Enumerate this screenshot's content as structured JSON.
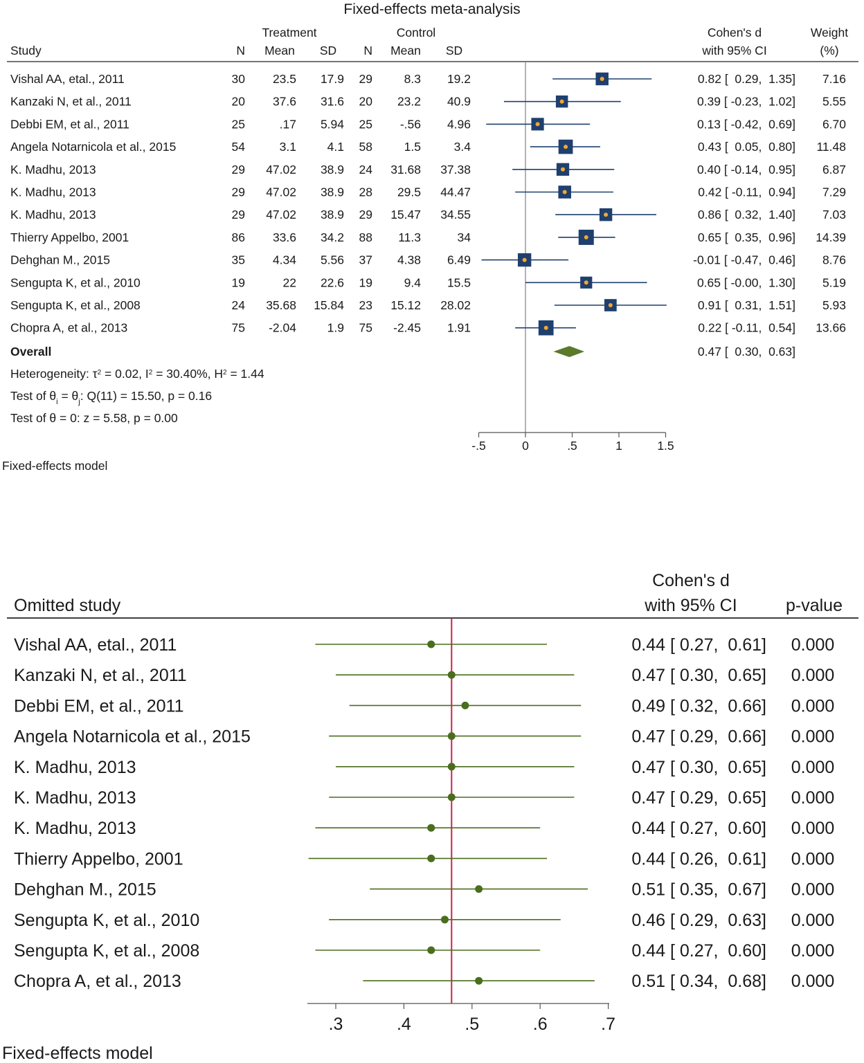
{
  "chart_data": [
    {
      "type": "forest",
      "title": "Fixed-effects meta-analysis",
      "group_headers": {
        "treatment": "Treatment",
        "control": "Control"
      },
      "columns": {
        "study": "Study",
        "n": "N",
        "mean": "Mean",
        "sd": "SD",
        "effect_line1": "Cohen's d",
        "effect_line2": "with 95% CI",
        "weight_line1": "Weight",
        "weight_line2": "(%)"
      },
      "studies": [
        {
          "name": "Vishal AA, etal., 2011",
          "t_n": "30",
          "t_mean": "23.5",
          "t_sd": "17.9",
          "c_n": "29",
          "c_mean": "8.3",
          "c_sd": "19.2",
          "d": 0.82,
          "lo": 0.29,
          "hi": 1.35,
          "ci_text": "0.82 [  0.29,  1.35]",
          "weight": 7.16,
          "weight_text": "7.16"
        },
        {
          "name": "Kanzaki N, et al., 2011",
          "t_n": "20",
          "t_mean": "37.6",
          "t_sd": "31.6",
          "c_n": "20",
          "c_mean": "23.2",
          "c_sd": "40.9",
          "d": 0.39,
          "lo": -0.23,
          "hi": 1.02,
          "ci_text": "0.39 [ -0.23,  1.02]",
          "weight": 5.55,
          "weight_text": "5.55"
        },
        {
          "name": "Debbi EM, et al., 2011",
          "t_n": "25",
          "t_mean": ".17",
          "t_sd": "5.94",
          "c_n": "25",
          "c_mean": "-.56",
          "c_sd": "4.96",
          "d": 0.13,
          "lo": -0.42,
          "hi": 0.69,
          "ci_text": "0.13 [ -0.42,  0.69]",
          "weight": 6.7,
          "weight_text": "6.70"
        },
        {
          "name": "Angela Notarnicola et al., 2015",
          "t_n": "54",
          "t_mean": "3.1",
          "t_sd": "4.1",
          "c_n": "58",
          "c_mean": "1.5",
          "c_sd": "3.4",
          "d": 0.43,
          "lo": 0.05,
          "hi": 0.8,
          "ci_text": "0.43 [  0.05,  0.80]",
          "weight": 11.48,
          "weight_text": "11.48"
        },
        {
          "name": "K. Madhu, 2013",
          "t_n": "29",
          "t_mean": "47.02",
          "t_sd": "38.9",
          "c_n": "24",
          "c_mean": "31.68",
          "c_sd": "37.38",
          "d": 0.4,
          "lo": -0.14,
          "hi": 0.95,
          "ci_text": "0.40 [ -0.14,  0.95]",
          "weight": 6.87,
          "weight_text": "6.87"
        },
        {
          "name": "K. Madhu, 2013",
          "t_n": "29",
          "t_mean": "47.02",
          "t_sd": "38.9",
          "c_n": "28",
          "c_mean": "29.5",
          "c_sd": "44.47",
          "d": 0.42,
          "lo": -0.11,
          "hi": 0.94,
          "ci_text": "0.42 [ -0.11,  0.94]",
          "weight": 7.29,
          "weight_text": "7.29"
        },
        {
          "name": "K. Madhu, 2013",
          "t_n": "29",
          "t_mean": "47.02",
          "t_sd": "38.9",
          "c_n": "29",
          "c_mean": "15.47",
          "c_sd": "34.55",
          "d": 0.86,
          "lo": 0.32,
          "hi": 1.4,
          "ci_text": "0.86 [  0.32,  1.40]",
          "weight": 7.03,
          "weight_text": "7.03"
        },
        {
          "name": "Thierry Appelbo, 2001",
          "t_n": "86",
          "t_mean": "33.6",
          "t_sd": "34.2",
          "c_n": "88",
          "c_mean": "11.3",
          "c_sd": "34",
          "d": 0.65,
          "lo": 0.35,
          "hi": 0.96,
          "ci_text": "0.65 [  0.35,  0.96]",
          "weight": 14.39,
          "weight_text": "14.39"
        },
        {
          "name": "Dehghan M., 2015",
          "t_n": "35",
          "t_mean": "4.34",
          "t_sd": "5.56",
          "c_n": "37",
          "c_mean": "4.38",
          "c_sd": "6.49",
          "d": -0.01,
          "lo": -0.47,
          "hi": 0.46,
          "ci_text": "-0.01 [ -0.47,  0.46]",
          "weight": 8.76,
          "weight_text": "8.76"
        },
        {
          "name": "Sengupta K, et al., 2010",
          "t_n": "19",
          "t_mean": "22",
          "t_sd": "22.6",
          "c_n": "19",
          "c_mean": "9.4",
          "c_sd": "15.5",
          "d": 0.65,
          "lo": -0.0,
          "hi": 1.3,
          "ci_text": "0.65 [ -0.00,  1.30]",
          "weight": 5.19,
          "weight_text": "5.19"
        },
        {
          "name": "Sengupta K, et al., 2008",
          "t_n": "24",
          "t_mean": "35.68",
          "t_sd": "15.84",
          "c_n": "23",
          "c_mean": "15.12",
          "c_sd": "28.02",
          "d": 0.91,
          "lo": 0.31,
          "hi": 1.51,
          "ci_text": "0.91 [  0.31,  1.51]",
          "weight": 5.93,
          "weight_text": "5.93"
        },
        {
          "name": "Chopra A, et al., 2013",
          "t_n": "75",
          "t_mean": "-2.04",
          "t_sd": "1.9",
          "c_n": "75",
          "c_mean": "-2.45",
          "c_sd": "1.91",
          "d": 0.22,
          "lo": -0.11,
          "hi": 0.54,
          "ci_text": "0.22 [ -0.11,  0.54]",
          "weight": 13.66,
          "weight_text": "13.66"
        }
      ],
      "overall": {
        "label": "Overall",
        "d": 0.47,
        "lo": 0.3,
        "hi": 0.63,
        "ci_text": "0.47 [  0.30,  0.63]"
      },
      "heterogeneity": {
        "prefix": "Heterogeneity: ",
        "tau_sym": "τ",
        "tau_val": " = 0.02, ",
        "i_sym": "I",
        "i_val": " = 30.40%, ",
        "h_sym": "H",
        "h_val": " = 1.44",
        "squared": "2"
      },
      "test_homogeneity": {
        "prefix": "Test of θ",
        "sub_i": "i",
        "mid": " = θ",
        "sub_j": "j",
        "suffix": ": Q(11) = 15.50, p = 0.16"
      },
      "test_zero": "Test of θ = 0: z = 5.58, p = 0.00",
      "xlim": [
        -0.5,
        1.5
      ],
      "xticks": [
        -0.5,
        0,
        0.5,
        1,
        1.5
      ],
      "xtick_labels": [
        "-.5",
        "0",
        ".5",
        "1",
        "1.5"
      ],
      "footnote": "Fixed-effects model",
      "colors": {
        "marker": "#1f3f6e",
        "marker_center": "#f0a830",
        "diamond": "#5b7a2a",
        "ci_line": "#1f3f6e",
        "axis": "#555555",
        "grid": "#808080"
      }
    },
    {
      "type": "leave-one-out",
      "columns": {
        "study": "Omitted study",
        "effect_line1": "Cohen's d",
        "effect_line2": "with 95% CI",
        "pvalue": "p-value"
      },
      "studies": [
        {
          "name": "Vishal AA, etal., 2011",
          "d": 0.44,
          "lo": 0.27,
          "hi": 0.61,
          "ci_text": "0.44 [ 0.27,  0.61]",
          "p": "0.000"
        },
        {
          "name": "Kanzaki N, et al., 2011",
          "d": 0.47,
          "lo": 0.3,
          "hi": 0.65,
          "ci_text": "0.47 [ 0.30,  0.65]",
          "p": "0.000"
        },
        {
          "name": "Debbi EM, et al., 2011",
          "d": 0.49,
          "lo": 0.32,
          "hi": 0.66,
          "ci_text": "0.49 [ 0.32,  0.66]",
          "p": "0.000"
        },
        {
          "name": "Angela Notarnicola et al., 2015",
          "d": 0.47,
          "lo": 0.29,
          "hi": 0.66,
          "ci_text": "0.47 [ 0.29,  0.66]",
          "p": "0.000"
        },
        {
          "name": "K. Madhu, 2013",
          "d": 0.47,
          "lo": 0.3,
          "hi": 0.65,
          "ci_text": "0.47 [ 0.30,  0.65]",
          "p": "0.000"
        },
        {
          "name": "K. Madhu, 2013",
          "d": 0.47,
          "lo": 0.29,
          "hi": 0.65,
          "ci_text": "0.47 [ 0.29,  0.65]",
          "p": "0.000"
        },
        {
          "name": "K. Madhu, 2013",
          "d": 0.44,
          "lo": 0.27,
          "hi": 0.6,
          "ci_text": "0.44 [ 0.27,  0.60]",
          "p": "0.000"
        },
        {
          "name": "Thierry Appelbo, 2001",
          "d": 0.44,
          "lo": 0.26,
          "hi": 0.61,
          "ci_text": "0.44 [ 0.26,  0.61]",
          "p": "0.000"
        },
        {
          "name": "Dehghan M., 2015",
          "d": 0.51,
          "lo": 0.35,
          "hi": 0.67,
          "ci_text": "0.51 [ 0.35,  0.67]",
          "p": "0.000"
        },
        {
          "name": "Sengupta K, et al., 2010",
          "d": 0.46,
          "lo": 0.29,
          "hi": 0.63,
          "ci_text": "0.46 [ 0.29,  0.63]",
          "p": "0.000"
        },
        {
          "name": "Sengupta K, et al., 2008",
          "d": 0.44,
          "lo": 0.27,
          "hi": 0.6,
          "ci_text": "0.44 [ 0.27,  0.60]",
          "p": "0.000"
        },
        {
          "name": "Chopra A, et al., 2013",
          "d": 0.51,
          "lo": 0.34,
          "hi": 0.68,
          "ci_text": "0.51 [ 0.34,  0.68]",
          "p": "0.000"
        }
      ],
      "reference_value": 0.47,
      "xlim": [
        0.26,
        0.7
      ],
      "xticks": [
        0.3,
        0.4,
        0.5,
        0.6,
        0.7
      ],
      "xtick_labels": [
        ".3",
        ".4",
        ".5",
        ".6",
        ".7"
      ],
      "footnote": "Fixed-effects model",
      "colors": {
        "marker": "#4a6d1e",
        "ci_line": "#4a6d1e",
        "reference": "#d0204a",
        "rule": "#000000",
        "axis": "#555555"
      }
    }
  ]
}
